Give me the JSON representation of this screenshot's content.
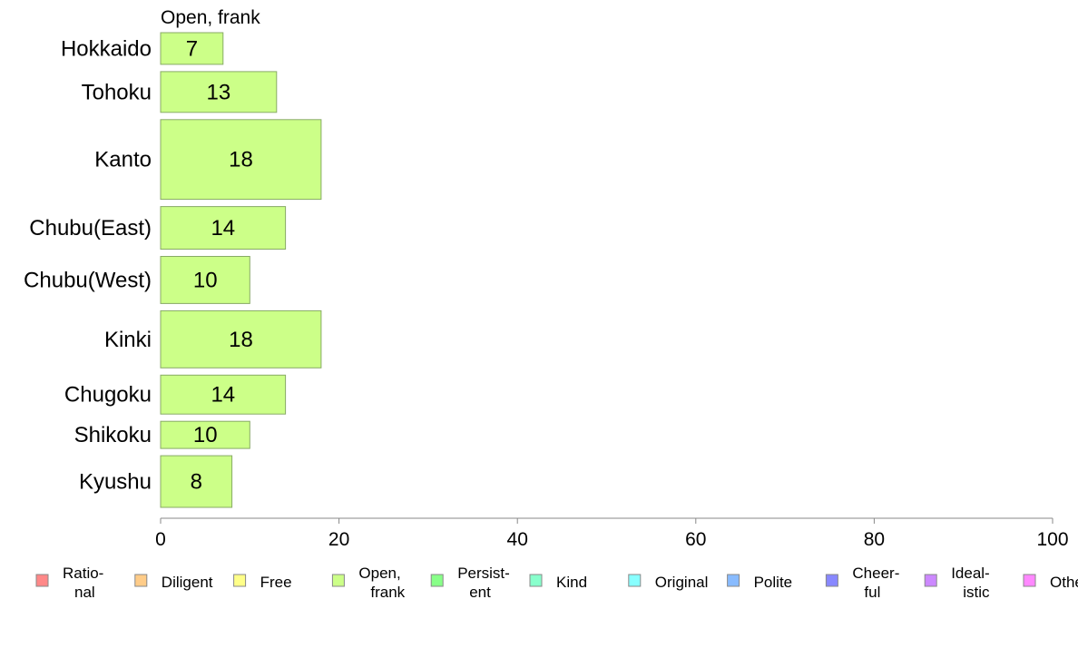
{
  "chart_data": {
    "type": "bar",
    "orientation": "horizontal",
    "panel_title": "Open, frank",
    "categories": [
      "Hokkaido",
      "Tohoku",
      "Kanto",
      "Chubu(East)",
      "Chubu(West)",
      "Kinki",
      "Chugoku",
      "Shikoku",
      "Kyushu"
    ],
    "values": [
      7,
      13,
      18,
      14,
      10,
      18,
      14,
      10,
      8
    ],
    "value_labels": [
      "7",
      "13",
      "18",
      "14",
      "10",
      "18",
      "14",
      "10",
      "8"
    ],
    "bar_weights": [
      35,
      45,
      88,
      47,
      52,
      63,
      43,
      30,
      57
    ],
    "xlim": [
      0,
      100
    ],
    "xticks": [
      0,
      20,
      40,
      60,
      80,
      100
    ],
    "xtick_labels": [
      "0",
      "20",
      "40",
      "60",
      "80",
      "100"
    ],
    "bar_color": "#ccff88",
    "bar_edge_color": "#88aa66",
    "axis_color": "#888888",
    "grid": false,
    "legend_position": "bottom",
    "legend": [
      {
        "label": [
          "Ratio-",
          "nal"
        ],
        "color": "#ff8888"
      },
      {
        "label": [
          "Diligent"
        ],
        "color": "#ffcc88"
      },
      {
        "label": [
          "Free"
        ],
        "color": "#ffff88"
      },
      {
        "label": [
          "Open,",
          "frank"
        ],
        "color": "#ccff88"
      },
      {
        "label": [
          "Persist-",
          "ent"
        ],
        "color": "#88ff88"
      },
      {
        "label": [
          "Kind"
        ],
        "color": "#88ffcc"
      },
      {
        "label": [
          "Original"
        ],
        "color": "#88ffff"
      },
      {
        "label": [
          "Polite"
        ],
        "color": "#88bbff"
      },
      {
        "label": [
          "Cheer-",
          "ful"
        ],
        "color": "#8888ff"
      },
      {
        "label": [
          "Ideal-",
          "istic"
        ],
        "color": "#cc88ff"
      },
      {
        "label": [
          "Others"
        ],
        "color": "#ff88ff"
      }
    ]
  }
}
